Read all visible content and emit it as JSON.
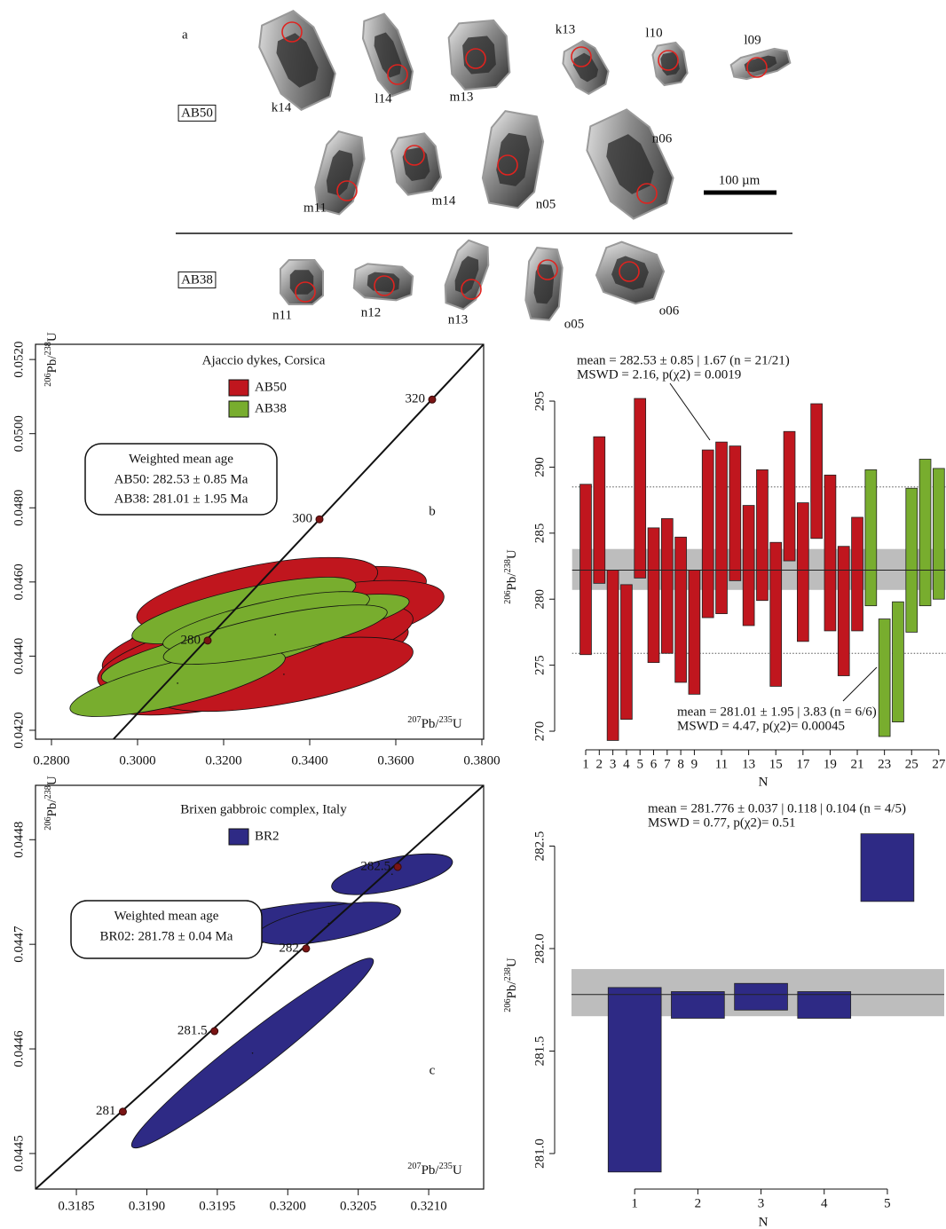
{
  "panel_a": {
    "label": "a",
    "samples": [
      "AB50",
      "AB38"
    ],
    "grains": [
      "k14",
      "l14",
      "m13",
      "k13",
      "l10",
      "l09",
      "m11",
      "m14",
      "n05",
      "n06",
      "n11",
      "n12",
      "n13",
      "o05",
      "o06"
    ],
    "scale_bar": "100 µm"
  },
  "chart_data": [
    {
      "type": "concordia",
      "title": "Ajaccio dykes, Corsica",
      "panel_label": "b",
      "x_label": {
        "sup1": "207",
        "text1": "Pb/",
        "sup2": "235",
        "text2": "U"
      },
      "y_label": {
        "sup1": "206",
        "text1": "Pb/",
        "sup2": "238",
        "text2": "U"
      },
      "xlim": [
        0.27629,
        0.38041
      ],
      "ylim": [
        0.04176,
        0.05241
      ],
      "xticks": [
        {
          "value": 0.28,
          "label": "0.2800"
        },
        {
          "value": 0.3,
          "label": "0.3000"
        },
        {
          "value": 0.32,
          "label": "0.3200"
        },
        {
          "value": 0.34,
          "label": "0.3400"
        },
        {
          "value": 0.36,
          "label": "0.3600"
        },
        {
          "value": 0.38,
          "label": "0.3800"
        }
      ],
      "yticks": [
        {
          "value": 0.042,
          "label": "0.0420"
        },
        {
          "value": 0.044,
          "label": "0.0440"
        },
        {
          "value": 0.046,
          "label": "0.0460"
        },
        {
          "value": 0.048,
          "label": "0.0480"
        },
        {
          "value": 0.05,
          "label": "0.0500"
        },
        {
          "value": 0.052,
          "label": "0.0520"
        }
      ],
      "concordia_line": {
        "x": [
          0.2944,
          0.3804
        ],
        "y": [
          0.04176,
          0.05241
        ]
      },
      "age_markers": {
        "ages": [
          280,
          300,
          320
        ],
        "x": [
          0.31629,
          0.34227,
          0.36845
        ],
        "y": [
          0.04442,
          0.04769,
          0.05092
        ]
      },
      "series": [
        {
          "name": "AB50",
          "color": "#c0161e",
          "x": [
            0.3299,
            0.334,
            0.3258,
            0.3381,
            0.3299,
            0.3216,
            0.3361,
            0.3278,
            0.3402,
            0.3237,
            0.332,
            0.334
          ],
          "y": [
            0.04494,
            0.04518,
            0.04446,
            0.04542,
            0.04399,
            0.04351,
            0.0447,
            0.04566,
            0.04494,
            0.04411,
            0.04434,
            0.04351
          ],
          "sx": [
            0.032,
            0.03,
            0.034,
            0.029,
            0.033,
            0.031,
            0.03,
            0.028,
            0.031,
            0.033,
            0.032,
            0.03
          ],
          "sy": [
            0.0011,
            0.001,
            0.0012,
            0.001,
            0.0011,
            0.0011,
            0.001,
            0.001,
            0.0011,
            0.0012,
            0.0011,
            0.001
          ],
          "rho": [
            0.6,
            0.6,
            0.6,
            0.6,
            0.6,
            0.6,
            0.6,
            0.6,
            0.6,
            0.6,
            0.6,
            0.6
          ]
        },
        {
          "name": "AB38",
          "color": "#78ad2e",
          "x": [
            0.3247,
            0.3361,
            0.3196,
            0.3299,
            0.3093,
            0.332
          ],
          "y": [
            0.04523,
            0.04487,
            0.04411,
            0.04494,
            0.04327,
            0.04458
          ],
          "sx": [
            0.026,
            0.027,
            0.028,
            0.024,
            0.025,
            0.026
          ],
          "sy": [
            0.0009,
            0.0008,
            0.0009,
            0.0008,
            0.0009,
            0.0008
          ],
          "rho": [
            0.75,
            0.75,
            0.75,
            0.75,
            0.75,
            0.75
          ]
        }
      ],
      "annotation": {
        "title": "Weighted mean age",
        "lines": [
          "AB50: 282.53 ± 0.85 Ma",
          "AB38: 281.01 ± 1.95 Ma"
        ]
      }
    },
    {
      "type": "weighted_mean",
      "x_label": "N",
      "y_label": {
        "sup1": "206",
        "text1": "Pb/",
        "sup2": "238",
        "text2": "U"
      },
      "xlim": [
        0,
        27.5
      ],
      "ylim": [
        269,
        296.5
      ],
      "xticks": [
        1,
        2,
        3,
        4,
        5,
        6,
        7,
        8,
        9,
        11,
        13,
        15,
        17,
        19,
        21,
        23,
        25,
        27
      ],
      "yticks": [
        270,
        275,
        280,
        285,
        290,
        295
      ],
      "mean": 282.2,
      "mean_band": [
        280.7,
        283.8
      ],
      "limits": [
        275.9,
        288.5
      ],
      "series": [
        {
          "name": "AB50",
          "color": "#c0161e",
          "x": [
            1,
            2,
            3,
            4,
            5,
            6,
            7,
            8,
            9,
            10,
            11,
            12,
            13,
            14,
            15,
            16,
            17,
            18,
            19,
            20,
            21
          ],
          "low": [
            275.8,
            281.2,
            269.3,
            270.9,
            281.6,
            275.2,
            275.9,
            273.7,
            272.8,
            278.6,
            278.9,
            281.4,
            278.0,
            279.9,
            273.4,
            282.9,
            276.8,
            284.6,
            277.6,
            274.2,
            277.6
          ],
          "high": [
            288.7,
            292.3,
            282.2,
            281.1,
            295.2,
            285.4,
            286.1,
            284.7,
            282.2,
            291.3,
            291.9,
            291.6,
            287.1,
            289.8,
            284.3,
            292.7,
            287.3,
            294.8,
            289.4,
            284.0,
            286.2
          ]
        },
        {
          "name": "AB38",
          "color": "#78ad2e",
          "x": [
            22,
            23,
            24,
            25,
            26,
            27
          ],
          "low": [
            279.5,
            269.6,
            270.7,
            277.5,
            279.5,
            280.0
          ],
          "high": [
            289.8,
            278.5,
            279.8,
            288.4,
            290.6,
            289.9
          ]
        }
      ],
      "annotations": [
        {
          "lines": [
            "mean = 282.53 ± 0.85 | 1.67 (n = 21/21)",
            "MSWD = 2.16, p(χ2) = 0.0019"
          ]
        },
        {
          "lines": [
            "mean = 281.01 ± 1.95 | 3.83 (n = 6/6)",
            "MSWD = 4.47, p(χ2)= 0.00045"
          ]
        }
      ]
    },
    {
      "type": "concordia",
      "title": "Brixen gabbroic complex, Italy",
      "panel_label": "c",
      "x_label": {
        "sup1": "207",
        "text1": "Pb/",
        "sup2": "235",
        "text2": "U"
      },
      "y_label": {
        "sup1": "206",
        "text1": "Pb/",
        "sup2": "238",
        "text2": "U"
      },
      "xlim": [
        0.31821,
        0.32139
      ],
      "ylim": [
        0.044466,
        0.044852
      ],
      "xticks": [
        0.3185,
        {
          "value": 0.319,
          "label": "0.3190"
        },
        0.3195,
        {
          "value": 0.32,
          "label": "0.3200"
        },
        0.3205,
        {
          "value": 0.321,
          "label": "0.3210"
        }
      ],
      "yticks": [
        0.0445,
        0.0446,
        0.0447,
        0.0448
      ],
      "concordia_line": {
        "x": [
          0.31821,
          0.32139
        ],
        "y": [
          0.044466,
          0.044852
        ]
      },
      "age_markers": {
        "ages": [
          281,
          281.5,
          282,
          282.5
        ],
        "x": [
          0.31883,
          0.31948,
          0.32013,
          0.32078
        ],
        "y": [
          0.04454,
          0.044617,
          0.044696,
          0.044774
        ]
      },
      "series": [
        {
          "name": "BR2",
          "color": "#2e2a85",
          "x": [
            0.31975,
            0.31994,
            0.32029,
            0.32074
          ],
          "y": [
            0.044596,
            0.04472,
            0.04472,
            0.044767
          ],
          "sx": [
            0.000858,
            0.000586,
            0.000511,
            0.000429
          ],
          "sy": [
            9.07e-05,
            2.03e-05,
            2.03e-05,
            1.95e-05
          ],
          "rho": [
            0.97,
            0.6,
            0.6,
            0.6
          ]
        }
      ],
      "annotation": {
        "title": "Weighted mean age",
        "lines": [
          "BR02: 281.78 ± 0.04 Ma"
        ]
      }
    },
    {
      "type": "weighted_mean",
      "x_label": "N",
      "y_label": {
        "sup1": "206",
        "text1": "Pb/",
        "sup2": "238",
        "text2": "U"
      },
      "xlim": [
        0,
        5.9
      ],
      "ylim": [
        280.87,
        282.58
      ],
      "xticks": [
        1,
        2,
        3,
        4,
        5
      ],
      "yticks": [
        {
          "value": 281,
          "label": "281.0"
        },
        281.5,
        {
          "value": 282,
          "label": "282.0"
        },
        282.5
      ],
      "mean": 281.776,
      "mean_band": [
        281.67,
        281.9
      ],
      "series": [
        {
          "name": "BR2",
          "color": "#2e2a85",
          "x": [
            1,
            2,
            3,
            4,
            5
          ],
          "low": [
            280.91,
            281.66,
            281.7,
            281.66,
            282.23
          ],
          "high": [
            281.81,
            281.79,
            281.83,
            281.79,
            282.56
          ]
        }
      ],
      "annotations": [
        {
          "lines": [
            "mean = 281.776 ± 0.037 | 0.118 | 0.104 (n = 4/5)",
            "MSWD = 0.77, p(χ2)= 0.51"
          ]
        }
      ]
    }
  ]
}
